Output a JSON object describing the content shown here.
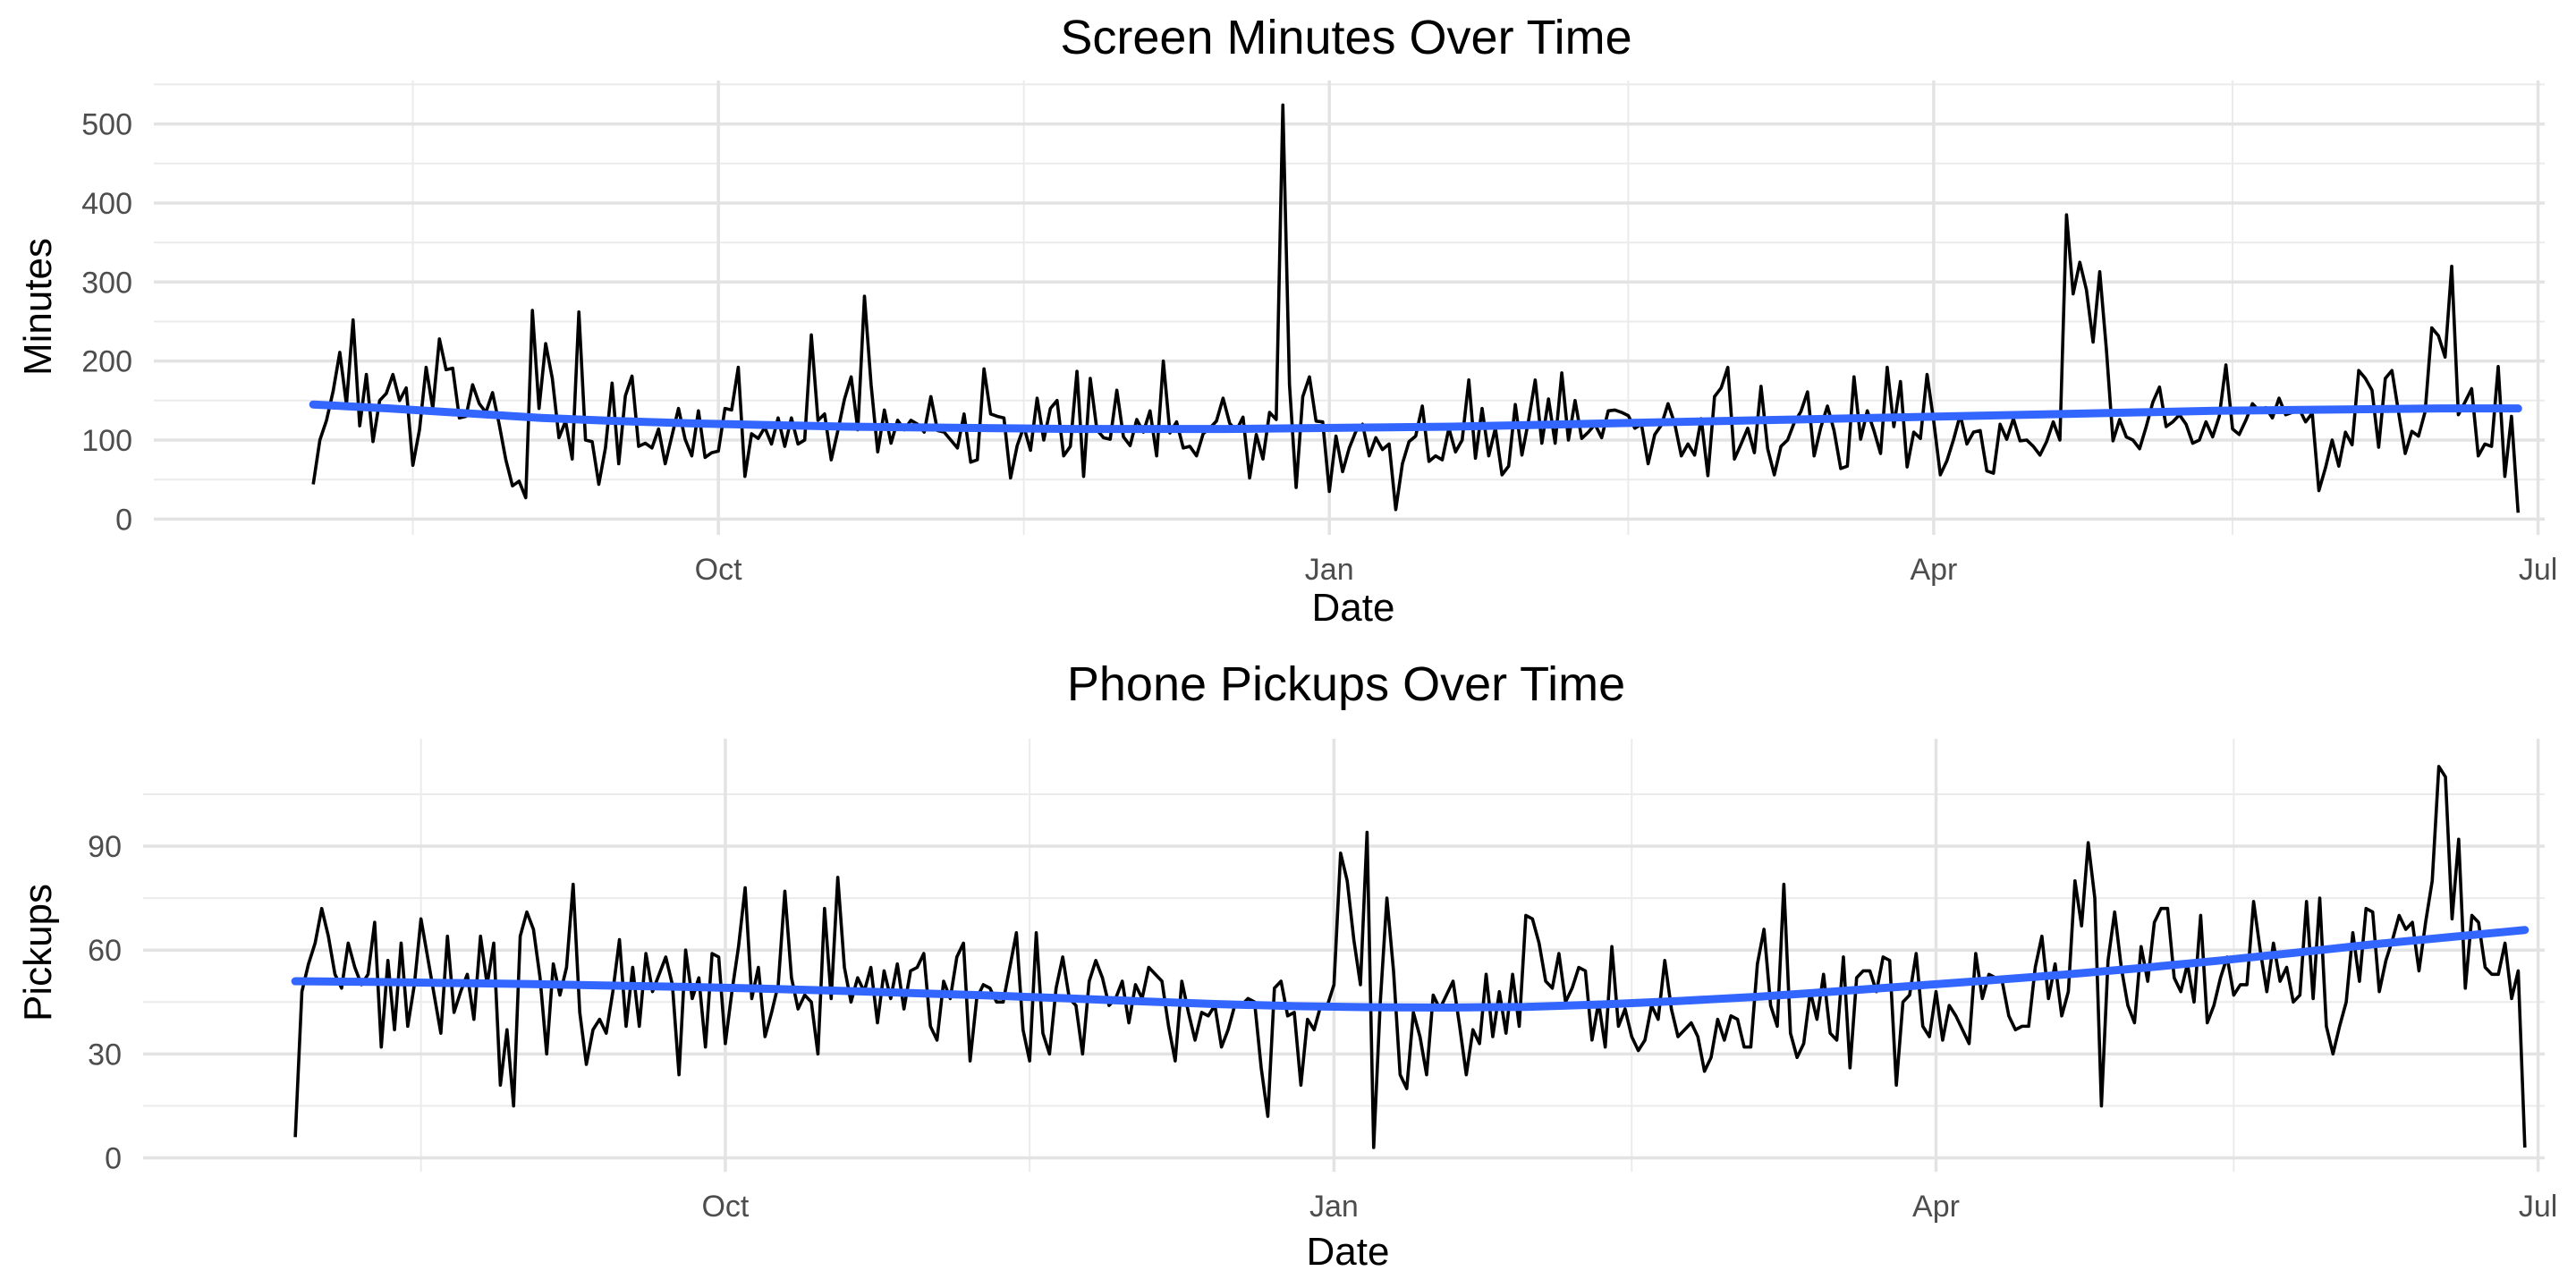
{
  "chart_data": [
    {
      "type": "line",
      "title": "Screen Minutes Over Time",
      "xlabel": "Date",
      "ylabel": "Minutes",
      "x_start": "2023-08-01",
      "xlim": [
        "2023-07-08",
        "2024-07-02"
      ],
      "ylim": [
        -20,
        555
      ],
      "x_ticks": [
        {
          "date": "2023-10-01",
          "label": "Oct"
        },
        {
          "date": "2024-01-01",
          "label": "Jan"
        },
        {
          "date": "2024-04-01",
          "label": "Apr"
        },
        {
          "date": "2024-07-01",
          "label": "Jul"
        }
      ],
      "x_minor_ticks": [
        "2023-08-16",
        "2023-11-16",
        "2024-02-15",
        "2024-05-16"
      ],
      "y_ticks": [
        0,
        100,
        200,
        300,
        400,
        500
      ],
      "grid": true,
      "series": [
        {
          "role": "daily",
          "color": "#000000",
          "values": [
            44,
            100,
            125,
            162,
            211,
            145,
            252,
            118,
            183,
            98,
            150,
            159,
            183,
            150,
            166,
            68,
            113,
            192,
            140,
            228,
            189,
            191,
            128,
            130,
            170,
            146,
            135,
            160,
            120,
            75,
            42,
            48,
            27,
            264,
            140,
            222,
            178,
            103,
            124,
            76,
            262,
            100,
            98,
            44,
            90,
            172,
            70,
            156,
            181,
            92,
            96,
            90,
            114,
            70,
            105,
            140,
            101,
            80,
            137,
            78,
            84,
            86,
            140,
            138,
            192,
            54,
            108,
            102,
            116,
            95,
            128,
            92,
            128,
            95,
            100,
            233,
            125,
            133,
            75,
            112,
            152,
            180,
            113,
            282,
            170,
            85,
            138,
            96,
            125,
            113,
            125,
            120,
            110,
            155,
            112,
            110,
            100,
            90,
            133,
            72,
            75,
            190,
            133,
            130,
            128,
            52,
            93,
            117,
            87,
            153,
            100,
            140,
            150,
            80,
            92,
            187,
            54,
            178,
            113,
            103,
            101,
            163,
            104,
            93,
            126,
            110,
            137,
            80,
            200,
            109,
            123,
            90,
            92,
            80,
            108,
            115,
            124,
            153,
            121,
            112,
            129,
            52,
            107,
            76,
            135,
            126,
            524,
            170,
            40,
            155,
            180,
            124,
            123,
            35,
            105,
            60,
            90,
            111,
            120,
            80,
            103,
            88,
            95,
            12,
            70,
            98,
            105,
            143,
            73,
            80,
            75,
            115,
            85,
            100,
            176,
            77,
            140,
            80,
            115,
            56,
            67,
            145,
            81,
            125,
            176,
            96,
            152,
            96,
            185,
            100,
            150,
            102,
            110,
            120,
            103,
            137,
            138,
            135,
            131,
            115,
            120,
            70,
            107,
            119,
            146,
            121,
            80,
            95,
            81,
            127,
            55,
            155,
            166,
            192,
            76,
            95,
            115,
            84,
            168,
            89,
            56,
            92,
            100,
            122,
            136,
            161,
            80,
            116,
            143,
            112,
            64,
            67,
            180,
            101,
            137,
            112,
            83,
            192,
            117,
            174,
            66,
            110,
            102,
            183,
            124,
            56,
            74,
            101,
            132,
            95,
            110,
            112,
            61,
            58,
            120,
            101,
            127,
            99,
            100,
            92,
            81,
            98,
            123,
            100,
            385,
            285,
            325,
            290,
            224,
            313,
            215,
            99,
            126,
            104,
            100,
            89,
            117,
            148,
            167,
            117,
            123,
            132,
            120,
            96,
            100,
            123,
            104,
            130,
            195,
            114,
            107,
            125,
            146,
            137,
            141,
            128,
            153,
            132,
            135,
            140,
            123,
            134,
            36,
            65,
            100,
            67,
            110,
            94,
            188,
            178,
            163,
            91,
            178,
            188,
            135,
            83,
            111,
            105,
            136,
            242,
            232,
            205,
            320,
            132,
            148,
            165,
            80,
            95,
            92,
            193,
            54,
            130,
            8
          ]
        },
        {
          "role": "smooth-trend",
          "color": "#3366ff",
          "values": [
            145,
            140,
            134,
            128,
            124,
            121,
            119,
            117,
            116,
            115,
            114,
            114,
            114,
            115,
            116,
            117,
            119,
            121,
            123,
            125,
            127,
            129,
            131,
            133,
            135,
            137,
            138,
            139,
            140,
            140
          ]
        }
      ]
    },
    {
      "type": "line",
      "title": "Phone Pickups Over Time",
      "xlabel": "Date",
      "ylabel": "Pickups",
      "x_start": "2023-07-28",
      "xlim": [
        "2023-07-05",
        "2024-07-02"
      ],
      "ylim": [
        -4,
        121
      ],
      "x_ticks": [
        {
          "date": "2023-10-01",
          "label": "Oct"
        },
        {
          "date": "2024-01-01",
          "label": "Jan"
        },
        {
          "date": "2024-04-01",
          "label": "Apr"
        },
        {
          "date": "2024-07-01",
          "label": "Jul"
        }
      ],
      "x_minor_ticks": [
        "2023-08-16",
        "2023-11-16",
        "2024-02-15",
        "2024-05-16"
      ],
      "y_ticks": [
        0,
        30,
        60,
        90
      ],
      "grid": true,
      "series": [
        {
          "role": "daily",
          "color": "#000000",
          "values": [
            6,
            48,
            56,
            62,
            72,
            64,
            53,
            49,
            62,
            55,
            50,
            53,
            68,
            32,
            57,
            37,
            62,
            38,
            50,
            69,
            58,
            47,
            36,
            64,
            42,
            48,
            53,
            40,
            64,
            50,
            62,
            21,
            37,
            15,
            64,
            71,
            66,
            52,
            30,
            56,
            47,
            55,
            79,
            42,
            27,
            37,
            40,
            36,
            48,
            63,
            38,
            55,
            38,
            59,
            48,
            53,
            58,
            50,
            24,
            60,
            46,
            52,
            32,
            59,
            58,
            33,
            48,
            61,
            78,
            46,
            55,
            35,
            42,
            50,
            77,
            52,
            43,
            47,
            45,
            30,
            72,
            46,
            81,
            55,
            45,
            52,
            48,
            55,
            39,
            54,
            46,
            56,
            43,
            54,
            55,
            59,
            38,
            34,
            51,
            46,
            58,
            62,
            28,
            46,
            50,
            49,
            45,
            45,
            55,
            65,
            37,
            28,
            65,
            36,
            30,
            49,
            58,
            46,
            44,
            30,
            51,
            57,
            52,
            44,
            46,
            51,
            39,
            50,
            46,
            55,
            53,
            51,
            38,
            28,
            51,
            42,
            34,
            42,
            41,
            44,
            32,
            37,
            44,
            44,
            46,
            45,
            26,
            12,
            49,
            51,
            41,
            42,
            21,
            40,
            37,
            44,
            44,
            50,
            88,
            80,
            63,
            50,
            94,
            3,
            45,
            75,
            54,
            24,
            20,
            42,
            35,
            24,
            47,
            43,
            47,
            51,
            38,
            24,
            37,
            33,
            53,
            35,
            48,
            36,
            53,
            38,
            70,
            69,
            62,
            51,
            49,
            59,
            45,
            49,
            55,
            54,
            34,
            45,
            32,
            61,
            38,
            43,
            35,
            31,
            34,
            44,
            40,
            57,
            43,
            35,
            37,
            39,
            35,
            25,
            29,
            40,
            34,
            41,
            40,
            32,
            32,
            56,
            66,
            44,
            38,
            79,
            36,
            29,
            33,
            48,
            40,
            53,
            36,
            34,
            58,
            26,
            52,
            54,
            54,
            48,
            58,
            57,
            21,
            45,
            47,
            59,
            38,
            35,
            48,
            34,
            44,
            41,
            37,
            33,
            59,
            46,
            53,
            52,
            51,
            41,
            37,
            38,
            38,
            55,
            64,
            46,
            56,
            41,
            48,
            80,
            67,
            91,
            75,
            15,
            57,
            71,
            55,
            44,
            39,
            61,
            51,
            68,
            72,
            72,
            52,
            48,
            56,
            45,
            70,
            39,
            44,
            52,
            58,
            47,
            50,
            50,
            74,
            60,
            48,
            62,
            51,
            55,
            45,
            47,
            74,
            46,
            75,
            38,
            30,
            38,
            45,
            65,
            51,
            72,
            71,
            48,
            57,
            63,
            70,
            66,
            68,
            54,
            68,
            80,
            113,
            110,
            69,
            92,
            49,
            70,
            68,
            55,
            53,
            53,
            62,
            46,
            54,
            3
          ]
        },
        {
          "role": "smooth-trend",
          "color": "#3366ff",
          "values": [
            51,
            50.8,
            50.5,
            50.2,
            49.8,
            49.4,
            48.9,
            48.3,
            47.6,
            46.9,
            46.1,
            45.2,
            44.4,
            43.8,
            43.5,
            43.4,
            43.6,
            44.3,
            45.3,
            46.5,
            48,
            49.6,
            51.2,
            52.9,
            54.8,
            56.9,
            59.2,
            61.6,
            63.7,
            65.8
          ]
        }
      ]
    }
  ]
}
